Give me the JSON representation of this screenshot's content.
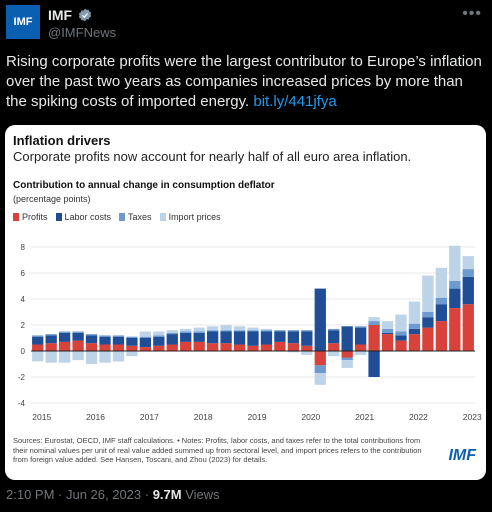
{
  "account": {
    "avatar_text": "IMF",
    "name": "IMF",
    "handle": "@IMFNews",
    "verified_icon": "verified-badge-icon",
    "more_icon": "more-icon"
  },
  "tweet": {
    "text": "Rising corporate profits were the largest contributor to Europe’s inflation over the past two years as companies increased prices by more than the spiking costs of imported energy.",
    "link": "bit.ly/441jfya"
  },
  "card": {
    "title": "Inflation drivers",
    "subtitle": "Corporate profits now account for nearly half of all euro area inflation.",
    "chart_title": "Contribution to annual change in consumption deflator",
    "unit": "(percentage points)",
    "footnote": "Sources: Eurostat, OECD, IMF staff calculations. • Notes: Profits, labor costs, and taxes refer to the total contributions from their nominal values per unit of real value added summed up from sectoral level, and import prices refers to the contribution from foreign value added. See Hansen, Toscani, and Zhou (2023) for details.",
    "logo": "IMF"
  },
  "chart_data": {
    "type": "bar",
    "stacked": true,
    "title": "Contribution to annual change in consumption deflator",
    "ylabel": "(percentage points)",
    "ylim": [
      -4,
      8
    ],
    "yticks": [
      -4,
      -2,
      0,
      2,
      4,
      6,
      8
    ],
    "xticks": [
      "2015",
      "2016",
      "2017",
      "2018",
      "2019",
      "2020",
      "2021",
      "2022",
      "2023"
    ],
    "categories": [
      "2015Q1",
      "2015Q2",
      "2015Q3",
      "2015Q4",
      "2016Q1",
      "2016Q2",
      "2016Q3",
      "2016Q4",
      "2017Q1",
      "2017Q2",
      "2017Q3",
      "2017Q4",
      "2018Q1",
      "2018Q2",
      "2018Q3",
      "2018Q4",
      "2019Q1",
      "2019Q2",
      "2019Q3",
      "2019Q4",
      "2020Q1",
      "2020Q2",
      "2020Q3",
      "2020Q4",
      "2021Q1",
      "2021Q2",
      "2021Q3",
      "2021Q4",
      "2022Q1",
      "2022Q2",
      "2022Q3",
      "2022Q4",
      "2023Q1"
    ],
    "series": [
      {
        "name": "Profits",
        "color": "#d9423a",
        "values": [
          0.5,
          0.6,
          0.7,
          0.8,
          0.6,
          0.5,
          0.5,
          0.4,
          0.3,
          0.4,
          0.5,
          0.7,
          0.7,
          0.6,
          0.6,
          0.5,
          0.4,
          0.5,
          0.7,
          0.6,
          0.4,
          -1.1,
          0.6,
          -0.5,
          0.5,
          2.0,
          1.3,
          0.8,
          1.3,
          1.8,
          2.3,
          3.3,
          3.6
        ]
      },
      {
        "name": "Labor costs",
        "color": "#1f4e96",
        "values": [
          0.6,
          0.6,
          0.7,
          0.6,
          0.6,
          0.6,
          0.6,
          0.6,
          0.7,
          0.7,
          0.8,
          0.7,
          0.7,
          0.9,
          0.9,
          1.0,
          1.1,
          1.0,
          0.8,
          0.9,
          1.1,
          4.8,
          1.0,
          1.9,
          1.3,
          -2.0,
          0.1,
          0.4,
          0.4,
          0.8,
          1.3,
          1.5,
          2.1
        ]
      },
      {
        "name": "Taxes",
        "color": "#6d9bd0",
        "values": [
          0.1,
          0.1,
          0.1,
          0.1,
          0.1,
          0.1,
          0.1,
          0.1,
          0.1,
          0.1,
          0.1,
          0.1,
          0.1,
          0.1,
          0.1,
          0.1,
          0.1,
          0.1,
          0.1,
          0.1,
          0.1,
          -0.6,
          0.1,
          -0.2,
          0.1,
          0.3,
          0.3,
          0.3,
          0.4,
          0.4,
          0.5,
          0.6,
          0.6
        ]
      },
      {
        "name": "Import prices",
        "color": "#bdd3e8",
        "values": [
          -0.8,
          -0.9,
          -0.9,
          -0.7,
          -1.0,
          -0.9,
          -0.8,
          -0.4,
          0.4,
          0.3,
          0.2,
          0.2,
          0.3,
          0.3,
          0.4,
          0.3,
          0.2,
          0.1,
          0.0,
          -0.1,
          -0.3,
          -0.9,
          -0.4,
          -0.6,
          -0.3,
          0.3,
          0.6,
          1.3,
          1.7,
          2.8,
          2.3,
          2.7,
          1.0
        ]
      }
    ]
  },
  "meta": {
    "time": "2:10 PM · Jun 26, 2023 · ",
    "views": "9.7M",
    "views_label": " Views"
  }
}
